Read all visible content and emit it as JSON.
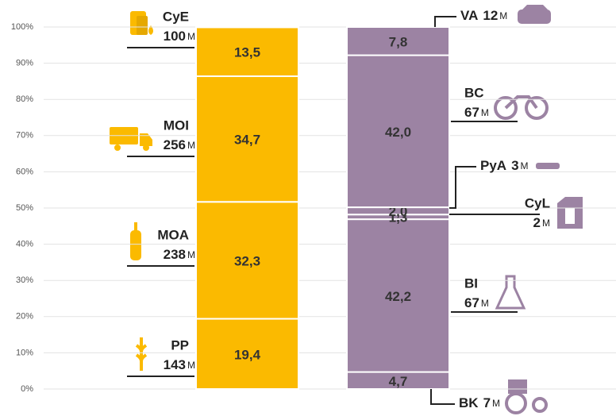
{
  "chart_data": {
    "type": "bar",
    "stacked": true,
    "ylim": [
      0,
      100
    ],
    "yticks": [
      {
        "value": 0,
        "label": "0%"
      },
      {
        "value": 10,
        "label": "10%"
      },
      {
        "value": 20,
        "label": "20%"
      },
      {
        "value": 30,
        "label": "30%"
      },
      {
        "value": 40,
        "label": "40%"
      },
      {
        "value": 50,
        "label": "50%"
      },
      {
        "value": 60,
        "label": "60%"
      },
      {
        "value": 70,
        "label": "70%"
      },
      {
        "value": 80,
        "label": "80%"
      },
      {
        "value": 90,
        "label": "90%"
      },
      {
        "value": 100,
        "label": "100%"
      }
    ],
    "grid": true,
    "stacks": [
      {
        "color": "#fbba00",
        "values": [
          19.4,
          32.3,
          34.7,
          13.5
        ],
        "value_labels": [
          "19,4",
          "32,3",
          "34,7",
          "13,5"
        ],
        "labels": [
          {
            "name": "PP",
            "amount": 143,
            "unit": "M"
          },
          {
            "name": "MOA",
            "amount": 238,
            "unit": "M"
          },
          {
            "name": "MOI",
            "amount": 256,
            "unit": "M"
          },
          {
            "name": "CyE",
            "amount": 100,
            "unit": "M"
          }
        ]
      },
      {
        "color": "#9c83a3",
        "values": [
          4.7,
          42.2,
          1.3,
          2.0,
          42.0,
          7.8
        ],
        "value_labels": [
          "4,7",
          "42,2",
          "1,3",
          "2,0",
          "42,0",
          "7,8"
        ],
        "labels": [
          {
            "name": "BK",
            "amount": 7,
            "unit": "M"
          },
          {
            "name": "BI",
            "amount": 67,
            "unit": "M"
          },
          {
            "name": "CyL",
            "amount": 2,
            "unit": "M"
          },
          {
            "name": "PyA",
            "amount": 3,
            "unit": "M"
          },
          {
            "name": "BC",
            "amount": 67,
            "unit": "M"
          },
          {
            "name": "VA",
            "amount": 12,
            "unit": "M"
          }
        ]
      }
    ]
  }
}
